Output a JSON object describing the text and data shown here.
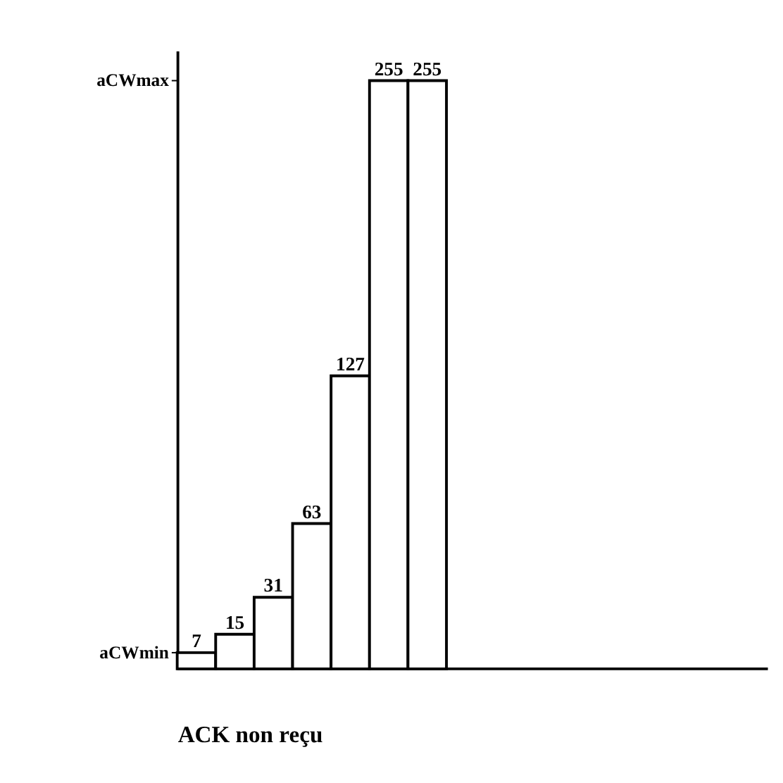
{
  "chart_data": {
    "type": "bar",
    "xlabel": "ACK non reçu",
    "categories": [
      null,
      null,
      null,
      null,
      null,
      null,
      null
    ],
    "values": [
      7,
      15,
      31,
      63,
      127,
      255,
      255
    ],
    "color": "#ffffff",
    "ylim": [
      0,
      268
    ],
    "annotations": [
      "aCWmin",
      "aCWmax"
    ],
    "data_labels": true,
    "grid": false
  }
}
